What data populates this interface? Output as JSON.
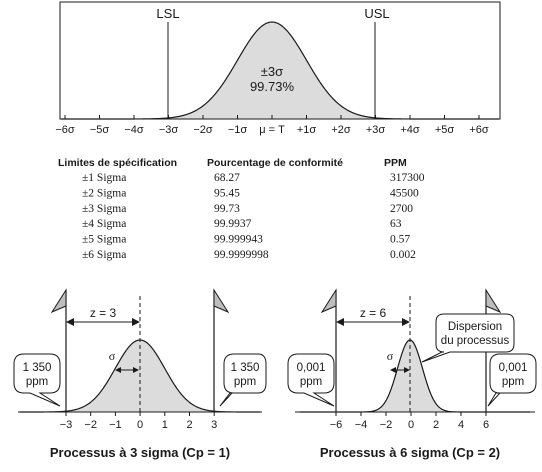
{
  "top": {
    "lsl": "LSL",
    "usl": "USL",
    "center_line1": "±3σ",
    "center_line2": "99.73%",
    "axis_ticks": [
      "−6σ",
      "−5σ",
      "−4σ",
      "−3σ",
      "−2σ",
      "−1σ",
      "μ = T",
      "+1σ",
      "+2σ",
      "+3σ",
      "+4σ",
      "+5σ",
      "+6σ"
    ]
  },
  "table": {
    "headers": [
      "Limites de spécification",
      "Pourcentage de conformité",
      "PPM"
    ],
    "rows": [
      [
        "±1 Sigma",
        "68.27",
        "317300"
      ],
      [
        "±2 Sigma",
        "95.45",
        "45500"
      ],
      [
        "±3 Sigma",
        "99.73",
        "2700"
      ],
      [
        "±4 Sigma",
        "99.9937",
        "63"
      ],
      [
        "±5 Sigma",
        "99.999943",
        "0.57"
      ],
      [
        "±6 Sigma",
        "99.9999998",
        "0.002"
      ]
    ]
  },
  "left_panel": {
    "z_label": "z = 3",
    "sigma": "σ",
    "left_callout": [
      "1 350",
      "ppm"
    ],
    "right_callout": [
      "1 350",
      "ppm"
    ],
    "ticks": [
      "−3",
      "−2",
      "−1",
      "0",
      "1",
      "2",
      "3"
    ],
    "caption": "Processus à 3 sigma (Cp = 1)"
  },
  "right_panel": {
    "z_label": "z = 6",
    "sigma": "σ",
    "dispersion": [
      "Dispersion",
      "du processus"
    ],
    "left_callout": [
      "0,001",
      "ppm"
    ],
    "right_callout": [
      "0,001",
      "ppm"
    ],
    "ticks": [
      "−6",
      "−4",
      "−2",
      "0",
      "2",
      "4",
      "6"
    ],
    "caption": "Processus à 6 sigma (Cp = 2)"
  },
  "colors": {
    "fill": "#dcdcdc",
    "line": "#1a1a1a"
  }
}
